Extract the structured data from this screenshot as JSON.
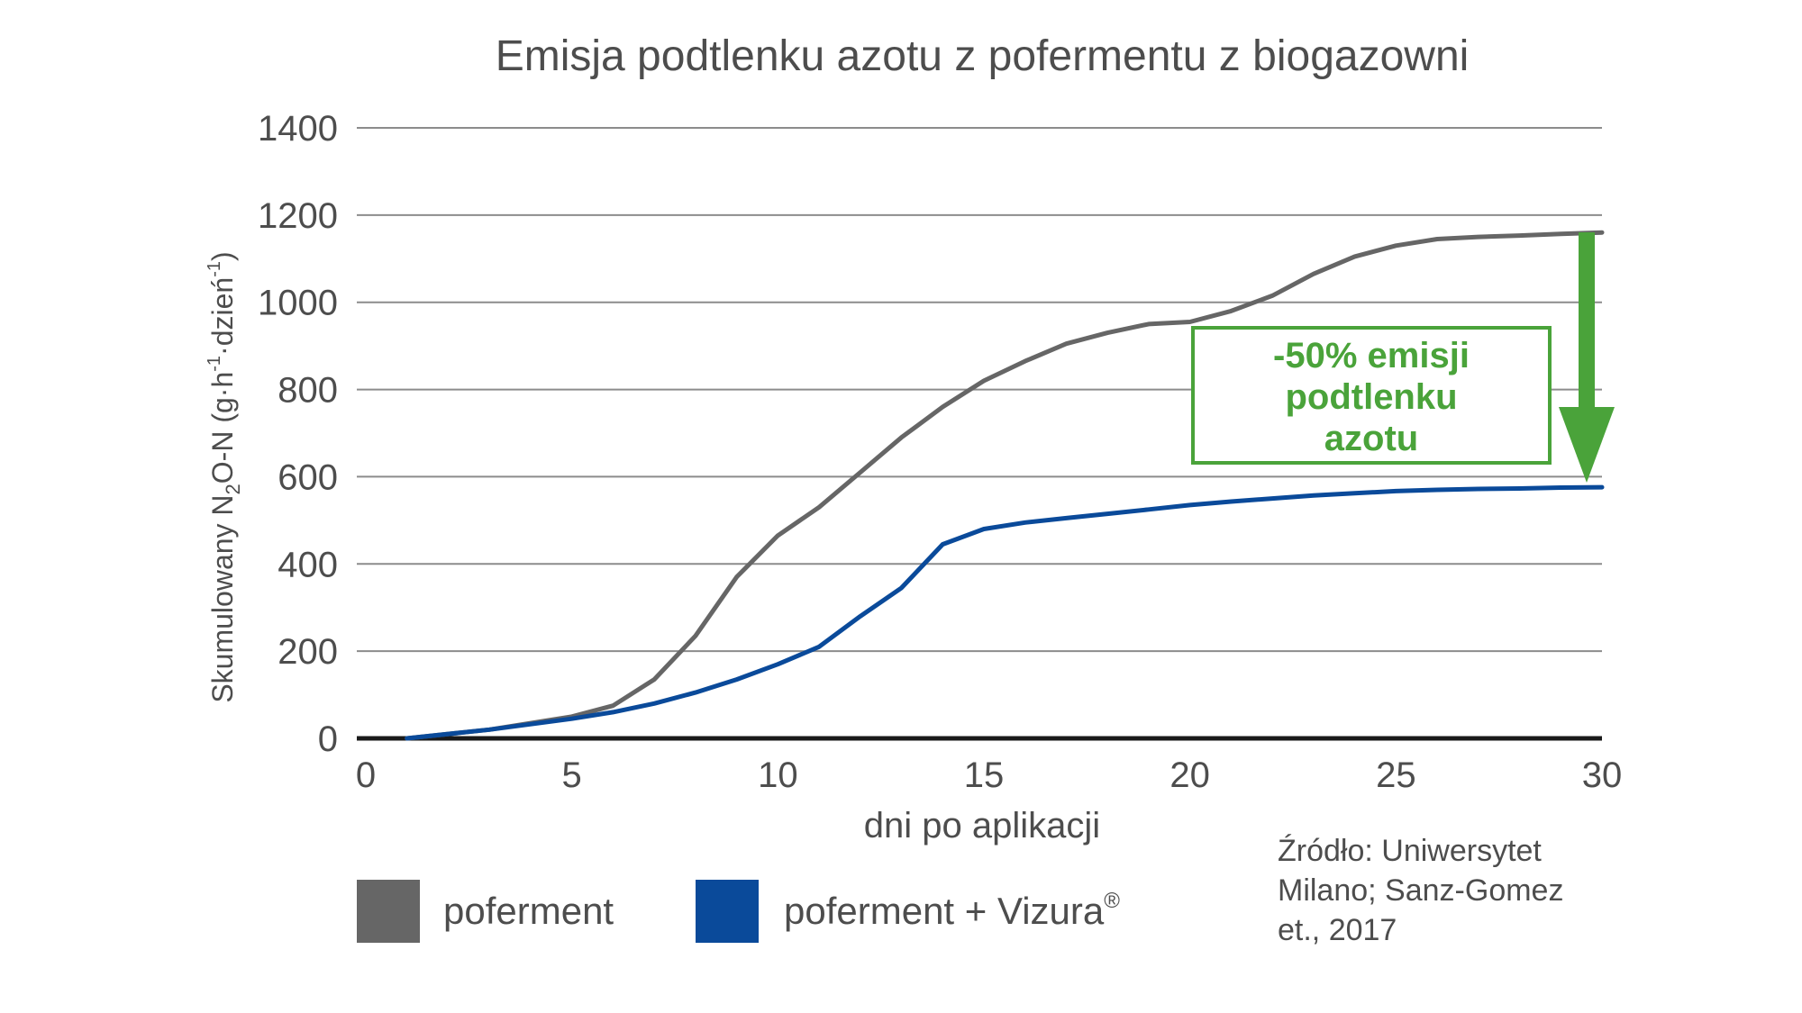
{
  "chart_data": {
    "type": "line",
    "title": "Emisja podtlenku azotu z pofermentu z biogazowni",
    "xlabel": "dni po aplikacji",
    "ylabel_main": "Skumulowany N",
    "ylabel_sub": "2",
    "ylabel_rest": "O-N (g·h",
    "ylabel_sup1": "-1",
    "ylabel_mid": "·dzień",
    "ylabel_sup2": "-1",
    "ylabel_end": ")",
    "xlim": [
      0,
      30
    ],
    "ylim": [
      0,
      1400
    ],
    "xticks": [
      0,
      5,
      10,
      15,
      20,
      25,
      30
    ],
    "yticks": [
      0,
      200,
      400,
      600,
      800,
      1000,
      1200,
      1400
    ],
    "grid": true,
    "legend_position": "bottom-left",
    "series": [
      {
        "name": "poferment",
        "color": "#666666",
        "x": [
          1,
          3,
          5,
          6,
          7,
          8,
          9,
          10,
          11,
          12,
          13,
          14,
          15,
          16,
          17,
          18,
          19,
          20,
          21,
          22,
          23,
          24,
          25,
          26,
          27,
          28,
          29,
          30
        ],
        "y": [
          0,
          20,
          50,
          75,
          135,
          235,
          370,
          465,
          530,
          610,
          690,
          760,
          820,
          865,
          905,
          930,
          950,
          955,
          980,
          1015,
          1065,
          1105,
          1130,
          1145,
          1150,
          1153,
          1157,
          1160
        ]
      },
      {
        "name": "poferment + Vizura",
        "name_sup": "®",
        "color": "#0a4a9a",
        "x": [
          1,
          3,
          5,
          6,
          7,
          8,
          9,
          10,
          11,
          12,
          13,
          14,
          15,
          16,
          17,
          18,
          19,
          20,
          21,
          22,
          23,
          24,
          25,
          26,
          27,
          28,
          29,
          30
        ],
        "y": [
          0,
          20,
          45,
          60,
          80,
          105,
          135,
          170,
          210,
          280,
          345,
          445,
          480,
          495,
          505,
          515,
          525,
          535,
          543,
          550,
          557,
          562,
          567,
          570,
          572,
          573,
          575,
          576
        ]
      }
    ],
    "annotation": {
      "lines": [
        "-50% emisji",
        "podtlenku",
        "azotu"
      ],
      "color": "#4aa33a"
    },
    "source": {
      "lines": [
        "Źródło: Uniwersytet",
        "Milano; Sanz-Gomez",
        "et., 2017"
      ]
    }
  }
}
